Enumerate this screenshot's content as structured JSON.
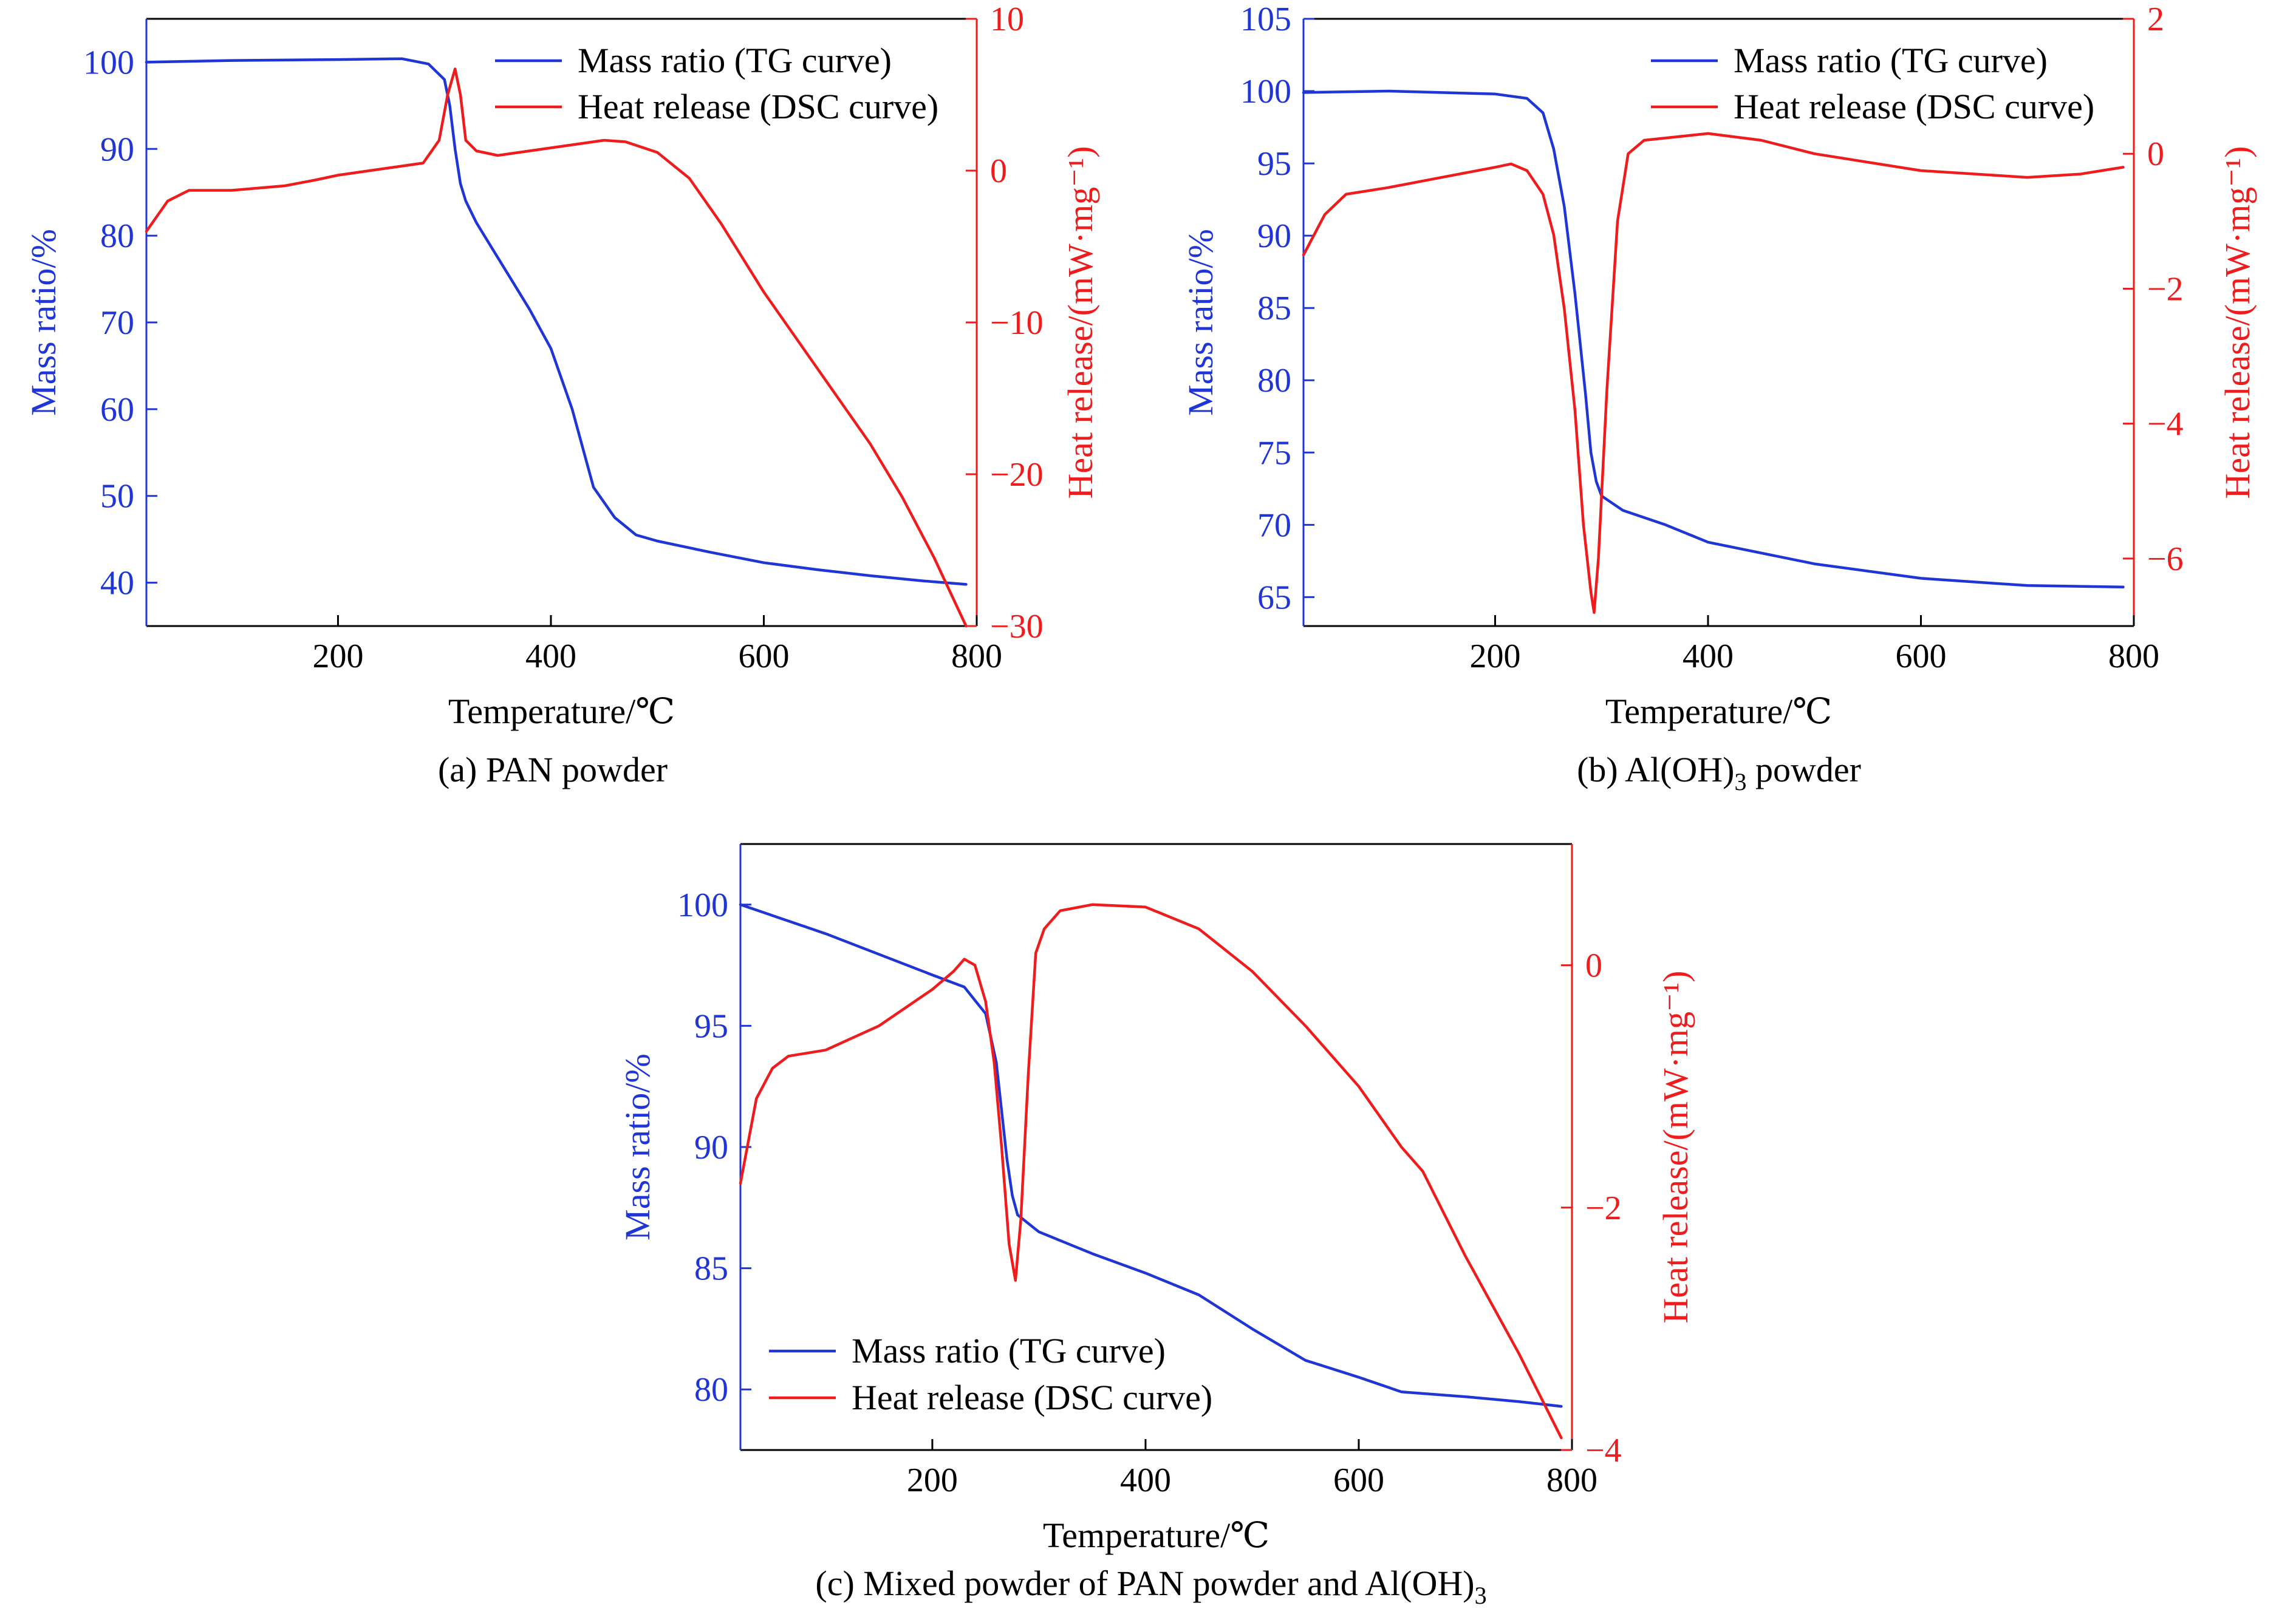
{
  "colors": {
    "tg": "#1f35d6",
    "dsc": "#ee1c1c",
    "axis": "#000000",
    "background": "#ffffff"
  },
  "chart_data": [
    {
      "id": "a",
      "type": "line",
      "caption": "(a) PAN powder",
      "xlabel": "Temperature/℃",
      "ylabel_left": "Mass ratio/%",
      "ylabel_right": "Heat release/(mW·mg⁻¹)",
      "xlim": [
        20,
        800
      ],
      "ylim_left": [
        35,
        105
      ],
      "ylim_right": [
        -30,
        10
      ],
      "xticks": [
        200,
        400,
        600,
        800
      ],
      "yticks_left": [
        40,
        50,
        60,
        70,
        80,
        90,
        100
      ],
      "yticks_right": [
        -30,
        -20,
        -10,
        0,
        10
      ],
      "legend_position": "top-right",
      "series": [
        {
          "name": "Mass ratio (TG curve)",
          "axis": "left",
          "color": "#1f35d6",
          "x": [
            20,
            100,
            200,
            260,
            285,
            300,
            305,
            310,
            315,
            320,
            330,
            340,
            360,
            380,
            400,
            420,
            440,
            460,
            480,
            500,
            550,
            600,
            650,
            700,
            750,
            790
          ],
          "y": [
            100,
            100.2,
            100.3,
            100.4,
            99.8,
            98,
            95,
            90,
            86,
            84,
            81.5,
            79.5,
            75.5,
            71.5,
            67,
            60,
            51,
            47.5,
            45.5,
            44.8,
            43.5,
            42.3,
            41.5,
            40.8,
            40.2,
            39.8
          ]
        },
        {
          "name": "Heat release (DSC curve)",
          "axis": "right",
          "color": "#ee1c1c",
          "x": [
            20,
            40,
            60,
            80,
            100,
            150,
            180,
            200,
            250,
            280,
            295,
            303,
            310,
            315,
            320,
            330,
            350,
            400,
            430,
            450,
            470,
            500,
            530,
            560,
            600,
            650,
            700,
            730,
            760,
            790
          ],
          "y": [
            -4,
            -2,
            -1.3,
            -1.3,
            -1.3,
            -1,
            -0.6,
            -0.3,
            0.2,
            0.5,
            2,
            5,
            6.7,
            5,
            2,
            1.3,
            1,
            1.5,
            1.8,
            2,
            1.9,
            1.2,
            -0.5,
            -3.5,
            -8,
            -13,
            -18,
            -21.5,
            -25.5,
            -30
          ]
        }
      ]
    },
    {
      "id": "b",
      "type": "line",
      "caption": "(b) Al(OH)₃ powder",
      "xlabel": "Temperature/℃",
      "ylabel_left": "Mass ratio/%",
      "ylabel_right": "Heat release/(mW·mg⁻¹)",
      "xlim": [
        20,
        800
      ],
      "ylim_left": [
        63,
        105
      ],
      "ylim_right": [
        -7,
        2
      ],
      "xticks": [
        200,
        400,
        600,
        800
      ],
      "yticks_left": [
        65,
        70,
        75,
        80,
        85,
        90,
        95,
        100,
        105
      ],
      "yticks_right": [
        -6,
        -4,
        -2,
        0,
        2
      ],
      "legend_position": "top-right",
      "series": [
        {
          "name": "Mass ratio (TG curve)",
          "axis": "left",
          "color": "#1f35d6",
          "x": [
            20,
            100,
            200,
            230,
            245,
            255,
            265,
            275,
            285,
            290,
            295,
            300,
            320,
            360,
            400,
            500,
            600,
            700,
            790
          ],
          "y": [
            99.9,
            100,
            99.8,
            99.5,
            98.5,
            96,
            92,
            86,
            79,
            75,
            73,
            72,
            71,
            70,
            68.8,
            67.3,
            66.3,
            65.8,
            65.7
          ]
        },
        {
          "name": "Heat release (DSC curve)",
          "axis": "right",
          "color": "#ee1c1c",
          "x": [
            20,
            40,
            60,
            100,
            150,
            200,
            215,
            230,
            245,
            255,
            265,
            275,
            283,
            290,
            293,
            297,
            305,
            315,
            325,
            340,
            400,
            450,
            500,
            600,
            700,
            750,
            790
          ],
          "y": [
            -1.5,
            -0.9,
            -0.6,
            -0.5,
            -0.35,
            -0.2,
            -0.15,
            -0.25,
            -0.6,
            -1.2,
            -2.3,
            -3.8,
            -5.5,
            -6.5,
            -6.8,
            -6,
            -3.5,
            -1,
            0,
            0.2,
            0.3,
            0.2,
            0,
            -0.25,
            -0.35,
            -0.3,
            -0.2
          ]
        }
      ]
    },
    {
      "id": "c",
      "type": "line",
      "caption": "(c) Mixed powder of PAN powder and Al(OH)₃",
      "xlabel": "Temperature/℃",
      "ylabel_left": "Mass ratio/%",
      "ylabel_right": "Heat release/(mW·mg⁻¹)",
      "xlim": [
        20,
        800
      ],
      "ylim_left": [
        77.5,
        102.5
      ],
      "ylim_right": [
        -4,
        1
      ],
      "xticks": [
        200,
        400,
        600,
        800
      ],
      "yticks_left": [
        80,
        85,
        90,
        95,
        100
      ],
      "yticks_right": [
        -4,
        -2,
        0
      ],
      "legend_position": "bottom-left",
      "series": [
        {
          "name": "Mass ratio (TG curve)",
          "axis": "left",
          "color": "#1f35d6",
          "x": [
            20,
            100,
            200,
            230,
            250,
            260,
            265,
            270,
            275,
            280,
            300,
            350,
            400,
            450,
            500,
            550,
            600,
            640,
            700,
            750,
            790
          ],
          "y": [
            100,
            98.8,
            97.1,
            96.6,
            95.5,
            93.5,
            91.5,
            89.5,
            88,
            87.2,
            86.5,
            85.6,
            84.8,
            83.9,
            82.5,
            81.2,
            80.5,
            79.9,
            79.7,
            79.5,
            79.3
          ]
        },
        {
          "name": "Heat release (DSC curve)",
          "axis": "right",
          "color": "#ee1c1c",
          "x": [
            20,
            35,
            50,
            65,
            100,
            150,
            200,
            220,
            230,
            240,
            250,
            258,
            265,
            272,
            278,
            283,
            290,
            297,
            305,
            320,
            350,
            400,
            450,
            500,
            550,
            600,
            640,
            660,
            700,
            750,
            790
          ],
          "y": [
            -1.8,
            -1.1,
            -0.85,
            -0.75,
            -0.7,
            -0.5,
            -0.2,
            -0.05,
            0.05,
            0,
            -0.3,
            -0.8,
            -1.5,
            -2.3,
            -2.6,
            -2.1,
            -0.9,
            0.1,
            0.3,
            0.45,
            0.5,
            0.48,
            0.3,
            -0.05,
            -0.5,
            -1.0,
            -1.5,
            -1.7,
            -2.4,
            -3.2,
            -3.9
          ]
        }
      ]
    }
  ]
}
